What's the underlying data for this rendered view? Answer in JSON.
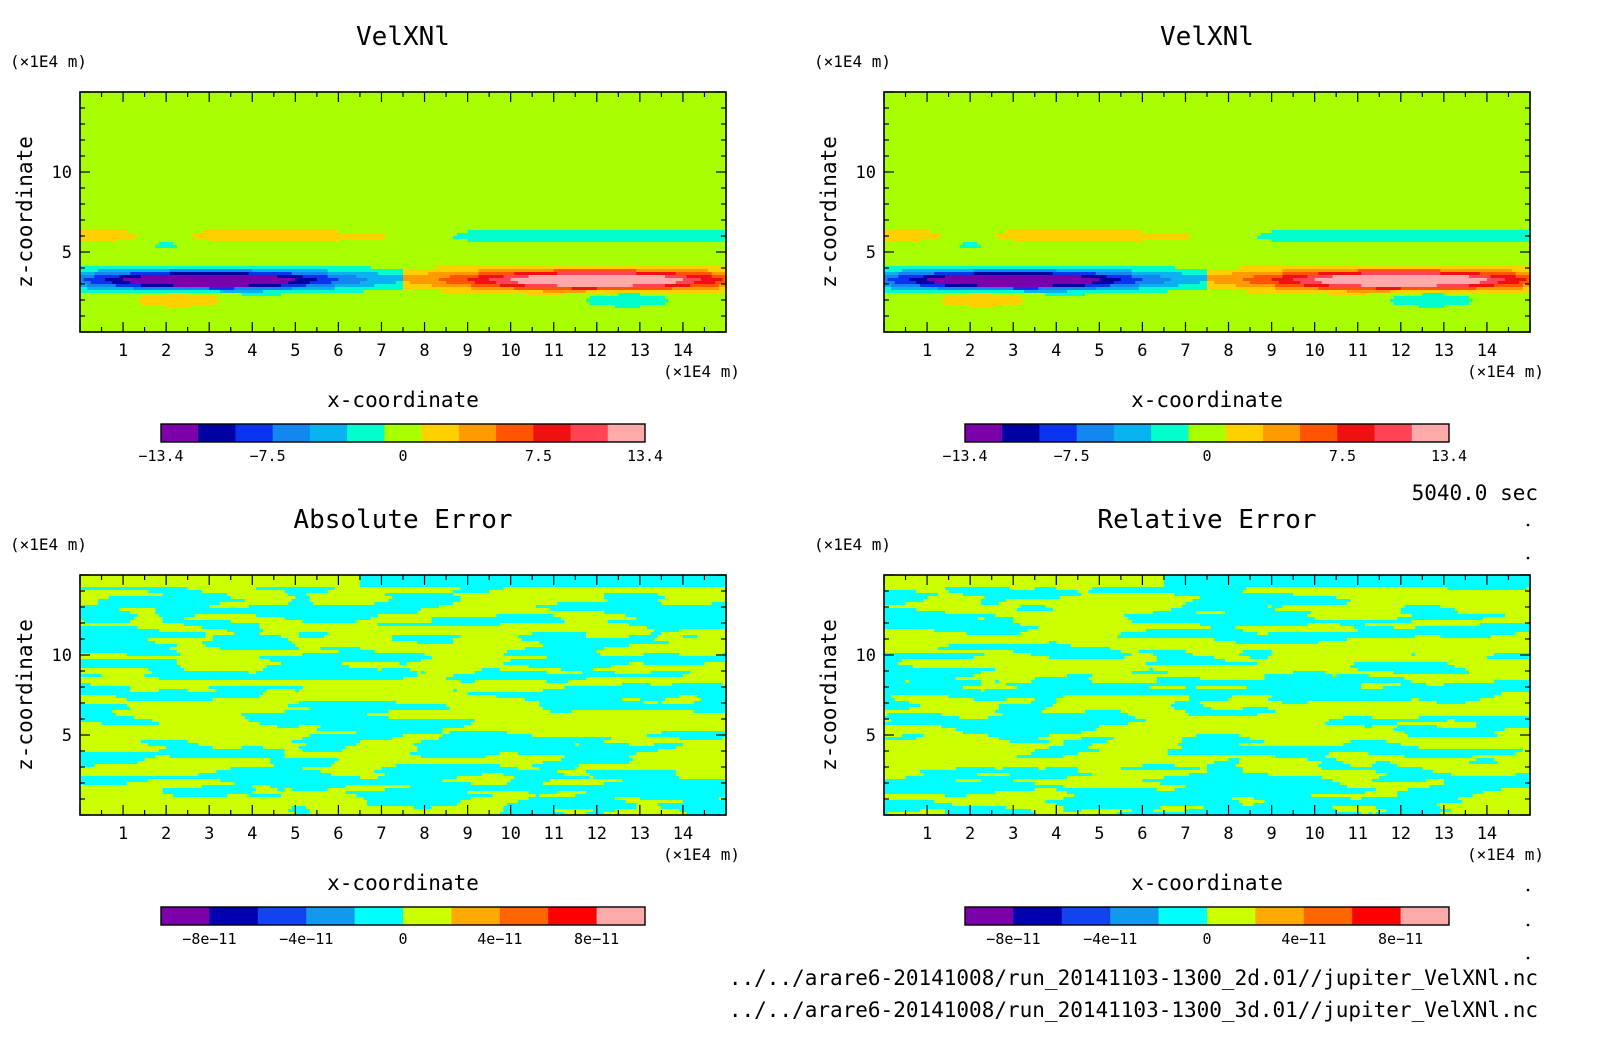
{
  "page": {
    "time_label": "5040.0 sec",
    "files": [
      "../../arare6-20141008/run_20141103-1300_2d.01//jupiter_VelXNl.nc",
      "../../arare6-20141008/run_20141103-1300_3d.01//jupiter_VelXNl.nc"
    ]
  },
  "colors": {
    "velocity_levels": [
      "#7a00aa",
      "#0000a0",
      "#0a33ee",
      "#1288ef",
      "#0ab2ef",
      "#00ffcc",
      "#a8ff00",
      "#ffd000",
      "#ff9a00",
      "#ff5500",
      "#ee1111",
      "#ff4455",
      "#ffaaaa"
    ],
    "error_levels": [
      "#7a00aa",
      "#0000b0",
      "#1144ee",
      "#1199ee",
      "#00ffff",
      "#ccff00",
      "#ffaa00",
      "#ff6600",
      "#ff0000",
      "#ffaaaa"
    ]
  },
  "chart_data": [
    {
      "type": "heatmap",
      "title": "VelXNl",
      "xlabel": "x-coordinate",
      "ylabel": "z-coordinate",
      "x_unit": "(×1E4 m)",
      "y_unit": "(×1E4 m)",
      "xlim": [
        0,
        15
      ],
      "ylim": [
        0,
        15
      ],
      "x_ticks": [
        1,
        2,
        3,
        4,
        5,
        6,
        7,
        8,
        9,
        10,
        11,
        12,
        13,
        14
      ],
      "y_ticks": [
        5,
        10
      ],
      "field": "velocity",
      "colorbar": {
        "range": [
          -13.4,
          13.4
        ],
        "tick_labels": [
          "−13.4",
          "−7.5",
          "0",
          "7.5",
          "13.4"
        ],
        "tick_values": [
          -13.4,
          -7.5,
          0,
          7.5,
          13.4
        ]
      }
    },
    {
      "type": "heatmap",
      "title": "VelXNl",
      "xlabel": "x-coordinate",
      "ylabel": "z-coordinate",
      "x_unit": "(×1E4 m)",
      "y_unit": "(×1E4 m)",
      "xlim": [
        0,
        15
      ],
      "ylim": [
        0,
        15
      ],
      "x_ticks": [
        1,
        2,
        3,
        4,
        5,
        6,
        7,
        8,
        9,
        10,
        11,
        12,
        13,
        14
      ],
      "y_ticks": [
        5,
        10
      ],
      "field": "velocity",
      "colorbar": {
        "range": [
          -13.4,
          13.4
        ],
        "tick_labels": [
          "−13.4",
          "−7.5",
          "0",
          "7.5",
          "13.4"
        ],
        "tick_values": [
          -13.4,
          -7.5,
          0,
          7.5,
          13.4
        ]
      }
    },
    {
      "type": "heatmap",
      "title": "Absolute Error",
      "xlabel": "x-coordinate",
      "ylabel": "z-coordinate",
      "x_unit": "(×1E4 m)",
      "y_unit": "(×1E4 m)",
      "xlim": [
        0,
        15
      ],
      "ylim": [
        0,
        15
      ],
      "x_ticks": [
        1,
        2,
        3,
        4,
        5,
        6,
        7,
        8,
        9,
        10,
        11,
        12,
        13,
        14
      ],
      "y_ticks": [
        5,
        10
      ],
      "field": "noise",
      "colorbar": {
        "range": [
          -1e-10,
          1e-10
        ],
        "tick_labels": [
          "−8e−11",
          "−4e−11",
          "0",
          "4e−11",
          "8e−11"
        ],
        "tick_values": [
          -8e-11,
          -4e-11,
          0,
          4e-11,
          8e-11
        ]
      }
    },
    {
      "type": "heatmap",
      "title": "Relative Error",
      "xlabel": "x-coordinate",
      "ylabel": "z-coordinate",
      "x_unit": "(×1E4 m)",
      "y_unit": "(×1E4 m)",
      "xlim": [
        0,
        15
      ],
      "ylim": [
        0,
        15
      ],
      "x_ticks": [
        1,
        2,
        3,
        4,
        5,
        6,
        7,
        8,
        9,
        10,
        11,
        12,
        13,
        14
      ],
      "y_ticks": [
        5,
        10
      ],
      "field": "noise",
      "colorbar": {
        "range": [
          -1e-10,
          1e-10
        ],
        "tick_labels": [
          "−8e−11",
          "−4e−11",
          "0",
          "4e−11",
          "8e−11"
        ],
        "tick_values": [
          -8e-11,
          -4e-11,
          0,
          4e-11,
          8e-11
        ]
      }
    }
  ]
}
